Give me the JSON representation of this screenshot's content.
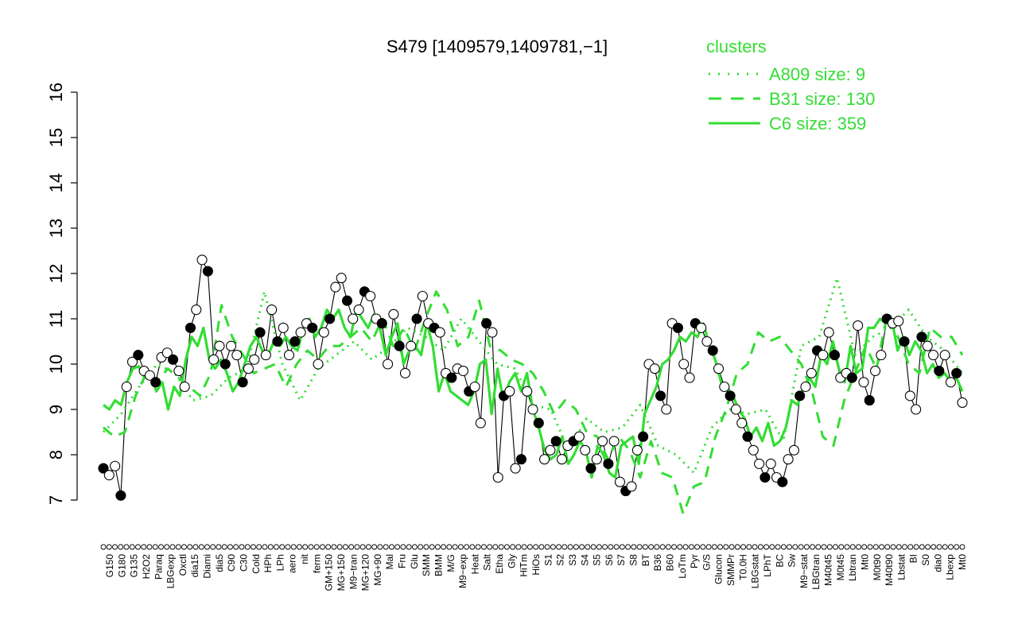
{
  "chart_data": {
    "type": "line",
    "title": "S479 [1409579,1409781,−1]",
    "xlabel": "",
    "ylabel": "",
    "ylim": [
      7,
      16
    ],
    "yticks": [
      7,
      8,
      9,
      10,
      11,
      12,
      13,
      14,
      15,
      16
    ],
    "x_tick_labels": [
      "G150",
      "G180",
      "G135",
      "H2O2",
      "Paraq",
      "LBGexp",
      "Oxctl",
      "dia15",
      "Diami",
      "dia5",
      "C90",
      "C30",
      "Cold",
      "HPh",
      "LPh",
      "aero",
      "nit",
      "ferm",
      "GM+150",
      "MG+150",
      "M9−tran",
      "MG+120",
      "MG+90",
      "Mal",
      "Fru",
      "Glu",
      "SMM",
      "BMM",
      "M/G",
      "M9−exp",
      "Heat",
      "Salt",
      "Etha",
      "Gly",
      "HiTm",
      "HiOs",
      "S1",
      "S2",
      "S3",
      "S4",
      "S5",
      "S6",
      "S7",
      "S8",
      "BT",
      "B36",
      "B60",
      "LoTm",
      "Pyr",
      "G/S",
      "Glucon",
      "SMMPr",
      "T0.0H",
      "LBGstat",
      "LPhT",
      "BC",
      "Sw",
      "M9−stat",
      "LBGtran",
      "M40t45",
      "M0t45",
      "Lbtran",
      "Mt0",
      "M0t90",
      "M40t90",
      "Lbstat",
      "BI",
      "S0",
      "dia0",
      "Lbexp",
      "Mt0"
    ],
    "legend": {
      "title": "clusters",
      "placement": "top-right",
      "entries": [
        {
          "label": "A809 size: 9",
          "style": "dotted"
        },
        {
          "label": "B31 size: 130",
          "style": "dashed"
        },
        {
          "label": "C6 size: 359",
          "style": "solid"
        }
      ]
    },
    "colors": {
      "clusters": "#33dd33",
      "points": "#000000",
      "background": "#ffffff"
    },
    "series": [
      {
        "name": "S479",
        "values": [
          7.7,
          7.55,
          7.75,
          7.1,
          9.5,
          10.05,
          10.2,
          9.85,
          9.75,
          9.6,
          10.15,
          10.25,
          10.1,
          9.85,
          9.5,
          10.8,
          11.2,
          12.3,
          12.05,
          10.1,
          10.4,
          10.0,
          10.4,
          10.2,
          9.6,
          9.9,
          10.1,
          10.7,
          10.2,
          11.2,
          10.5,
          10.8,
          10.2,
          10.5,
          10.7,
          10.9,
          10.8,
          10.0,
          10.7,
          11.0,
          11.7,
          11.9,
          11.4,
          11.0,
          11.2,
          11.6,
          11.5,
          11.0,
          10.9,
          10.0,
          11.1,
          10.4,
          9.8,
          10.4,
          11.0,
          11.5,
          10.9,
          10.8,
          10.7,
          9.8,
          9.7,
          9.9,
          9.85,
          9.4,
          9.5,
          8.7,
          10.9,
          10.7,
          7.5,
          9.3,
          9.4,
          7.7,
          7.9,
          9.4,
          9.0,
          8.7,
          7.9,
          8.1,
          8.3,
          7.9,
          8.2,
          8.3,
          8.4,
          8.1,
          7.7,
          7.9,
          8.3,
          7.8,
          8.3,
          7.4,
          7.2,
          7.3,
          8.1,
          8.4,
          10.0,
          9.9,
          9.3,
          9.0,
          10.9,
          10.8,
          10.0,
          9.7,
          10.9,
          10.8,
          10.5,
          10.3,
          9.9,
          9.5,
          9.3,
          9.0,
          8.7,
          8.4,
          8.1,
          7.8,
          7.5,
          7.8,
          7.5,
          7.4,
          7.9,
          8.1,
          9.3,
          9.5,
          9.8,
          10.3,
          10.2,
          10.7,
          10.2,
          9.7,
          9.8,
          9.7,
          10.85,
          9.6,
          9.2,
          9.85,
          10.2,
          11.0,
          10.9,
          10.95,
          10.5,
          9.3,
          9.0,
          10.6,
          10.4,
          10.2,
          9.85,
          10.2,
          9.6,
          9.8,
          9.15
        ]
      },
      {
        "name": "C6 size: 359",
        "values": [
          9.1,
          9.0,
          9.2,
          9.1,
          9.6,
          9.9,
          9.95,
          9.7,
          9.8,
          9.4,
          9.6,
          9.0,
          9.5,
          9.3,
          10.1,
          10.6,
          10.4,
          10.8,
          10.1,
          9.9,
          10.1,
          9.8,
          9.4,
          9.6,
          10.0,
          10.4,
          10.6,
          10.3,
          10.2,
          10.5,
          10.4,
          10.6,
          10.4,
          10.3,
          10.8,
          11.0,
          10.6,
          10.8,
          11.2,
          11.0,
          11.2,
          10.8,
          10.6,
          11.2,
          11.0,
          10.8,
          11.1,
          10.8,
          10.2,
          10.6,
          10.9,
          10.0,
          10.3,
          10.4,
          10.2,
          10.9,
          10.4,
          9.4,
          9.8,
          9.4,
          9.3,
          9.2,
          9.1,
          9.4,
          10.0,
          10.1,
          8.9,
          9.9,
          9.2,
          9.6,
          9.8,
          9.4,
          9.8,
          9.0,
          8.6,
          8.1,
          7.9,
          8.0,
          8.4,
          7.8,
          8.0,
          8.3,
          8.1,
          7.5,
          8.2,
          8.0,
          7.6,
          7.5,
          8.2,
          8.3,
          8.4,
          7.8,
          8.9,
          9.2,
          9.5,
          10.0,
          10.1,
          10.3,
          10.6,
          10.5,
          10.7,
          10.6,
          10.9,
          10.4,
          10.1,
          9.6,
          9.5,
          9.3,
          9.0,
          8.8,
          8.4,
          8.6,
          8.3,
          8.7,
          8.2,
          8.3,
          8.6,
          9.2,
          9.1,
          9.5,
          9.7,
          9.5,
          10.2,
          10.0,
          10.5,
          9.9,
          9.6,
          10.4,
          9.8,
          9.9,
          10.8,
          10.8,
          11.0,
          10.9,
          11.0,
          10.3,
          10.6,
          10.2,
          10.5,
          10.3,
          9.8,
          10.0,
          9.7,
          9.8,
          9.6,
          9.7,
          9.4
        ]
      },
      {
        "name": "B31 size: 130",
        "values": [
          8.6,
          8.4,
          8.5,
          9.3,
          9.8,
          9.6,
          9.9,
          9.7,
          9.5,
          9.3,
          9.8,
          11.3,
          10.6,
          10.2,
          9.8,
          9.9,
          10.0,
          9.5,
          10.0,
          10.3,
          10.1,
          10.4,
          10.4,
          10.6,
          10.8,
          10.5,
          11.0,
          10.4,
          10.8,
          10.3,
          11.0,
          11.6,
          11.2,
          10.4,
          10.6,
          11.4,
          10.4,
          10.3,
          10.1,
          10.0,
          9.8,
          9.4,
          8.9,
          9.2,
          9.0,
          8.5,
          8.4,
          7.9,
          8.4,
          8.1,
          7.5,
          8.3,
          7.6,
          7.5,
          6.7,
          7.3,
          7.4,
          8.4,
          9.0,
          9.8,
          10.0,
          10.7,
          10.5,
          10.6,
          10.3,
          10.0,
          9.4,
          8.4,
          8.2,
          9.2,
          9.8,
          10.4,
          9.9,
          11.1,
          10.6,
          10.0,
          9.8,
          10.8,
          10.6,
          10.6,
          10.2
        ]
      },
      {
        "name": "A809 size: 9",
        "values": [
          8.5,
          8.9,
          9.5,
          10.0,
          9.8,
          9.2,
          9.3,
          9.7,
          9.9,
          11.6,
          10.0,
          9.2,
          9.9,
          10.2,
          10.5,
          10.1,
          10.4,
          10.8,
          10.6,
          10.3,
          11.0,
          10.5,
          10.0,
          9.9,
          9.1,
          9.0,
          8.1,
          8.8,
          8.5,
          8.6,
          9.1,
          8.2,
          8.0,
          7.6,
          8.6,
          9.0,
          8.9,
          9.0,
          8.3,
          10.4,
          10.6,
          11.9,
          10.2,
          10.6,
          10.8,
          11.2,
          10.6,
          10.3,
          9.8
        ]
      }
    ]
  }
}
